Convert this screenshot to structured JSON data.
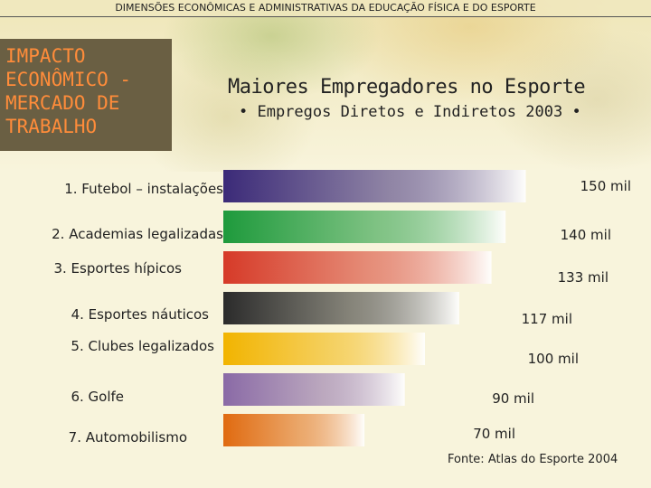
{
  "header": {
    "text": "DIMENSÕES ECONÔMICAS E ADMINISTRATIVAS DA EDUCAÇÃO FÍSICA E DO ESPORTE"
  },
  "sidebar": {
    "lines": [
      "IMPACTO",
      "ECONÔMICO -",
      "MERCADO DE",
      "TRABALHO"
    ]
  },
  "colors": {
    "sidebar_bg": "#6a5f43",
    "sidebar_text": "#ff8c3a",
    "background": "#f8f4dc"
  },
  "chart_data": {
    "type": "bar",
    "orientation": "horizontal",
    "title": "Maiores Empregadores no Esporte",
    "subtitle": "• Empregos Diretos e Indiretos 2003 •",
    "categories": [
      "1. Futebol – instalações",
      "2. Academias legalizadas",
      "3. Esportes hípicos",
      "4. Esportes náuticos",
      "5. Clubes legalizados",
      "6. Golfe",
      "7. Automobilismo"
    ],
    "values": [
      150,
      140,
      133,
      117,
      100,
      90,
      70
    ],
    "value_labels": [
      "150 mil",
      "140 mil",
      "133 mil",
      "117 mil",
      "100 mil",
      "90 mil",
      "70 mil"
    ],
    "unit": "mil",
    "bar_colors": [
      "#3b2a78",
      "#1e9a3c",
      "#d63a28",
      "#2b2b2b",
      "#f2b400",
      "#8a6aa6",
      "#e06a10"
    ],
    "source": "Fonte: Atlas do Esporte 2004"
  }
}
